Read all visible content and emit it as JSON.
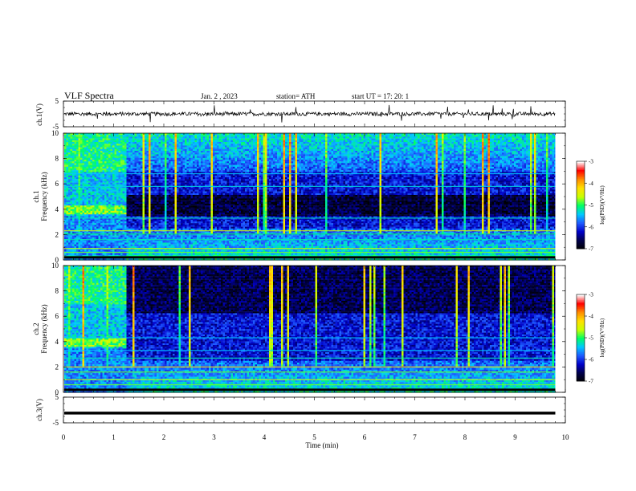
{
  "header": {
    "title": "VLF  Spectra",
    "date": "Jan.  2  , 2023",
    "station": "station= ATH",
    "start": "start  UT  =    17: 20: 1"
  },
  "chart_data": [
    {
      "type": "line",
      "panel": "ch1-waveform",
      "ylabel": "ch.1(V)",
      "ylim": [
        -5,
        5
      ],
      "yticks": [
        "5",
        "-5"
      ],
      "xlim": [
        0,
        10
      ],
      "description_values": {
        "baseline": 0,
        "noise_amplitude": 0.6,
        "spike_amplitude": 3
      }
    },
    {
      "type": "heatmap",
      "panel": "ch1-spectrogram",
      "ylabel": "ch.1\nFrequency  (kHz)",
      "ylabel_lines": [
        "ch.1",
        "Frequency  (kHz)"
      ],
      "ylim": [
        0,
        10
      ],
      "yticks": [
        "0",
        "2",
        "4",
        "6",
        "8",
        "10"
      ],
      "xlim": [
        0,
        10
      ],
      "data_end_min": 9.8,
      "transition_min": 1.22,
      "colorbar": {
        "label": "log(PSD)(V²/Hz)",
        "range": [
          -7,
          -3
        ],
        "ticks": [
          "-3",
          "-4",
          "-5",
          "-6",
          "-7"
        ]
      }
    },
    {
      "type": "heatmap",
      "panel": "ch2-spectrogram",
      "ylabel_lines": [
        "ch.2",
        "Frequency  (kHz)"
      ],
      "ylim": [
        0,
        10
      ],
      "yticks": [
        "0",
        "2",
        "4",
        "6",
        "8",
        "10"
      ],
      "xlim": [
        0,
        10
      ],
      "data_end_min": 9.8,
      "transition_min": 1.22,
      "colorbar": {
        "label": "log(PSD)(V²/Hz)",
        "range": [
          -7,
          -3
        ],
        "ticks": [
          "-3",
          "-4",
          "-5",
          "-6",
          "-7"
        ]
      }
    },
    {
      "type": "line",
      "panel": "ch3-waveform",
      "ylabel": "ch.3(V)",
      "ylim": [
        -5,
        5
      ],
      "yticks": [
        "5",
        "-5"
      ],
      "xlim": [
        0,
        10
      ],
      "xticks": [
        "0",
        "1",
        "2",
        "3",
        "4",
        "5",
        "6",
        "7",
        "8",
        "9",
        "10"
      ],
      "xlabel": "Time  (min)",
      "description_values": {
        "level": -1.2
      }
    }
  ],
  "colors": {
    "cmap": [
      "#000000",
      "#00004a",
      "#0000c8",
      "#1e5aff",
      "#00c8ff",
      "#00ff64",
      "#c8ff00",
      "#ffe000",
      "#ff8c00",
      "#ff0000",
      "#ffffff"
    ]
  }
}
